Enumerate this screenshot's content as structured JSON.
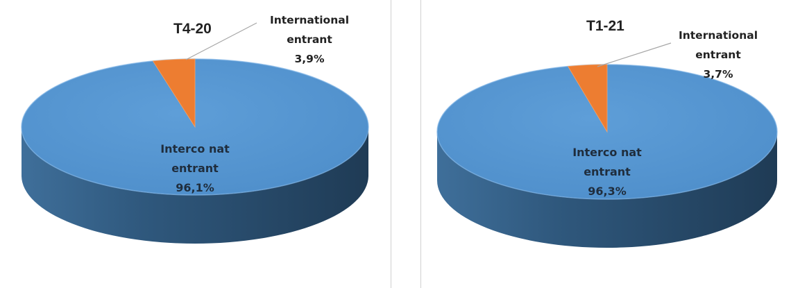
{
  "chart_data": [
    {
      "type": "pie",
      "title": "T4-20",
      "categories": [
        "Interco nat entrant",
        "International entrant"
      ],
      "values": [
        96.1,
        3.9
      ],
      "labels": {
        "major": [
          "Interco nat",
          "entrant",
          "96,1%"
        ],
        "minor": [
          "International",
          "entrant",
          "3,9%"
        ]
      },
      "colors": [
        "#5b9bd5",
        "#ed7d31"
      ]
    },
    {
      "type": "pie",
      "title": "T1-21",
      "categories": [
        "Interco nat entrant",
        "International entrant"
      ],
      "values": [
        96.3,
        3.7
      ],
      "labels": {
        "major": [
          "Interco nat",
          "entrant",
          "96,3%"
        ],
        "minor": [
          "International",
          "entrant",
          "3,7%"
        ]
      },
      "colors": [
        "#5b9bd5",
        "#ed7d31"
      ]
    }
  ]
}
